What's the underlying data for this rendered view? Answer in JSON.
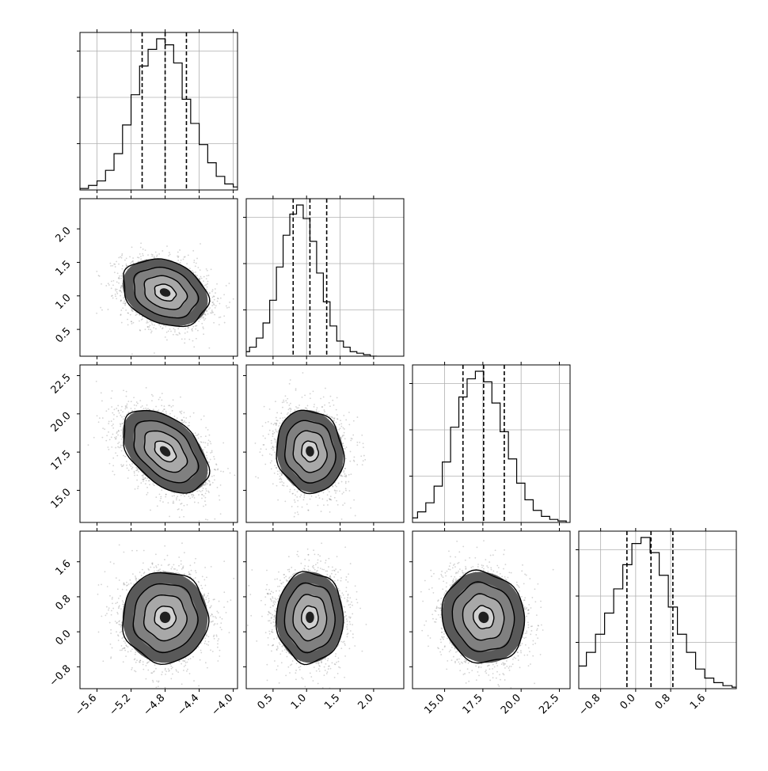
{
  "chart_data": {
    "type": "corner",
    "parameters": [
      {
        "range": [
          -5.8,
          -3.95
        ],
        "ticks": [
          "−5.6",
          "−5.2",
          "−4.8",
          "−4.4",
          "−4.0"
        ],
        "tick_values": [
          -5.6,
          -5.2,
          -4.8,
          -4.4,
          -4.0
        ],
        "quantiles": [
          -5.07,
          -4.8,
          -4.55
        ],
        "mean": -4.8,
        "sd": 0.25
      },
      {
        "range": [
          0.1,
          2.45
        ],
        "ticks": [
          "0.5",
          "1.0",
          "1.5",
          "2.0"
        ],
        "tick_values": [
          0.5,
          1.0,
          1.5,
          2.0
        ],
        "quantiles": [
          0.8,
          1.05,
          1.3
        ],
        "mean": 1.05,
        "sd": 0.25
      },
      {
        "range": [
          12.9,
          23.2
        ],
        "ticks": [
          "15.0",
          "17.5",
          "20.0",
          "22.5"
        ],
        "tick_values": [
          15.0,
          17.5,
          20.0,
          22.5
        ],
        "quantiles": [
          16.2,
          17.55,
          18.9
        ],
        "mean": 17.55,
        "sd": 1.35
      },
      {
        "range": [
          -1.3,
          2.3
        ],
        "ticks": [
          "−0.8",
          "0.0",
          "0.8",
          "1.6"
        ],
        "tick_values": [
          -0.8,
          0.0,
          0.8,
          1.6
        ],
        "quantiles": [
          -0.2,
          0.35,
          0.85
        ],
        "mean": 0.33,
        "sd": 0.52
      }
    ],
    "histograms": [
      {
        "param": 0,
        "bins": 20,
        "counts": [
          0.01,
          0.03,
          0.06,
          0.13,
          0.24,
          0.43,
          0.63,
          0.82,
          0.93,
          1.0,
          0.96,
          0.84,
          0.6,
          0.44,
          0.3,
          0.18,
          0.09,
          0.04,
          0.02,
          0.01
        ]
      },
      {
        "param": 1,
        "bins": 20,
        "counts": [
          0.03,
          0.06,
          0.12,
          0.22,
          0.37,
          0.59,
          0.8,
          0.94,
          1.0,
          0.91,
          0.76,
          0.55,
          0.36,
          0.2,
          0.1,
          0.06,
          0.03,
          0.02,
          0.01,
          0.0
        ]
      },
      {
        "param": 2,
        "bins": 20,
        "counts": [
          0.01,
          0.03,
          0.07,
          0.13,
          0.24,
          0.4,
          0.63,
          0.83,
          0.95,
          1.0,
          0.93,
          0.79,
          0.6,
          0.42,
          0.26,
          0.15,
          0.08,
          0.04,
          0.02,
          0.01
        ]
      },
      {
        "param": 3,
        "bins": 20,
        "counts": [
          0.04,
          0.09,
          0.15,
          0.24,
          0.36,
          0.5,
          0.66,
          0.82,
          0.96,
          1.0,
          0.9,
          0.75,
          0.54,
          0.36,
          0.24,
          0.13,
          0.07,
          0.04,
          0.02,
          0.01
        ]
      }
    ],
    "pairs": [
      {
        "x": 0,
        "y": 1,
        "correlation": -0.25
      },
      {
        "x": 0,
        "y": 2,
        "correlation": -0.45
      },
      {
        "x": 1,
        "y": 2,
        "correlation": -0.1
      },
      {
        "x": 0,
        "y": 3,
        "correlation": 0.0
      },
      {
        "x": 1,
        "y": 3,
        "correlation": 0.0
      },
      {
        "x": 2,
        "y": 3,
        "correlation": -0.08
      }
    ],
    "contour_levels_sigma": [
      0.5,
      1.0,
      1.5,
      2.0
    ],
    "grid": true,
    "line_color": "#000000",
    "grid_color": "#b0b0b0",
    "scatter_color": "#808080"
  }
}
